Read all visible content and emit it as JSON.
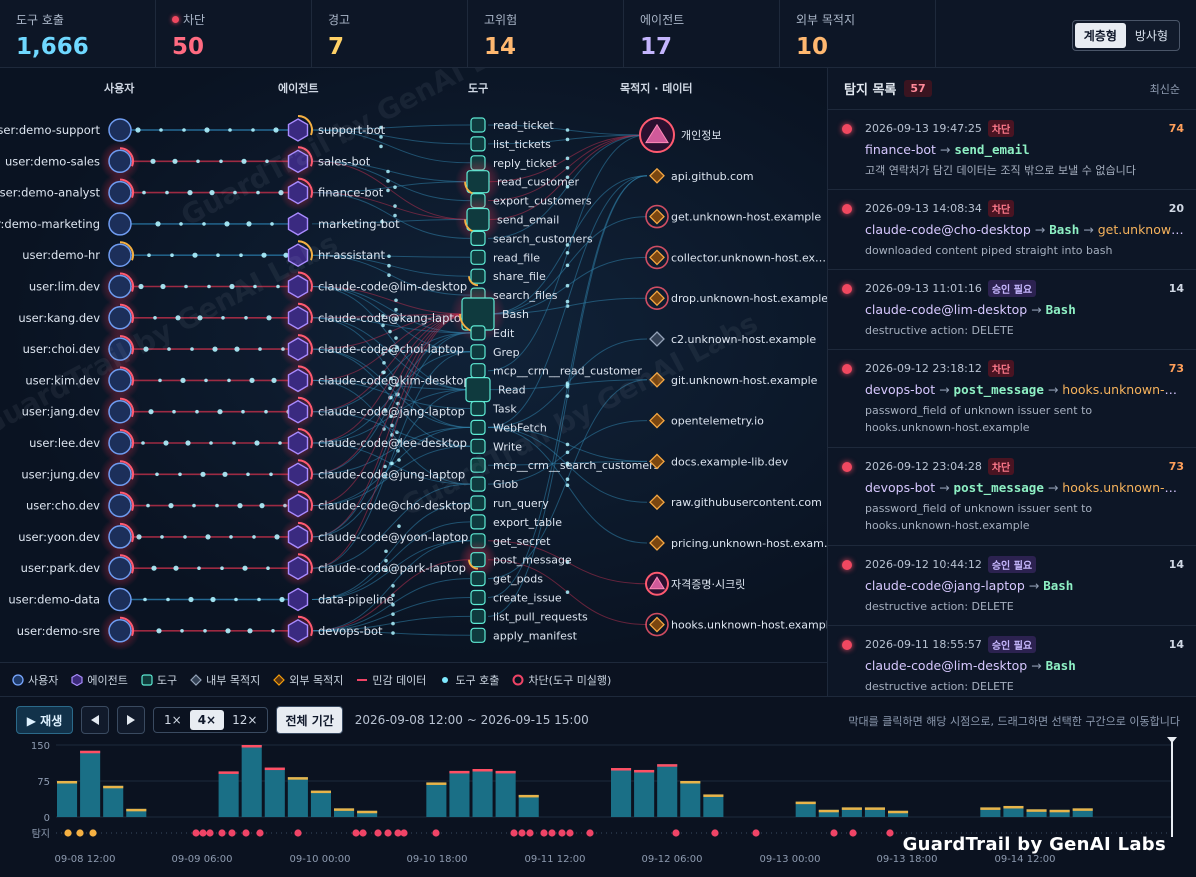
{
  "stats": [
    {
      "label": "도구 호출",
      "value": "1,666",
      "color": "#6fd8ff",
      "dot": false
    },
    {
      "label": "차단",
      "value": "50",
      "color": "#ff6b81",
      "dot": true
    },
    {
      "label": "경고",
      "value": "7",
      "color": "#ffd166",
      "dot": false
    },
    {
      "label": "고위험",
      "value": "14",
      "color": "#ffb870",
      "dot": false
    },
    {
      "label": "에이전트",
      "value": "17",
      "color": "#c4b5fd",
      "dot": false
    },
    {
      "label": "외부 목적지",
      "value": "10",
      "color": "#ffb870",
      "dot": false
    }
  ],
  "view_toggle": {
    "hier": "계층형",
    "radial": "방사형"
  },
  "graph": {
    "headers": {
      "users": "사용자",
      "agents": "에이전트",
      "tools": "도구",
      "dests": "목적지 · 데이터"
    },
    "users": [
      "user:demo-support",
      "user:demo-sales",
      "user:demo-analyst",
      "user:demo-marketing",
      "user:demo-hr",
      "user:lim.dev",
      "user:kang.dev",
      "user:choi.dev",
      "user:kim.dev",
      "user:jang.dev",
      "user:lee.dev",
      "user:jung.dev",
      "user:cho.dev",
      "user:yoon.dev",
      "user:park.dev",
      "user:demo-data",
      "user:demo-sre"
    ],
    "agents": [
      "support-bot",
      "sales-bot",
      "finance-bot",
      "marketing-bot",
      "hr-assistant",
      "claude-code@lim-desktop",
      "claude-code@kang-laptop",
      "claude-code@choi-laptop",
      "claude-code@kim-desktop",
      "claude-code@jang-laptop",
      "claude-code@lee-desktop",
      "claude-code@jung-laptop",
      "claude-code@cho-desktop",
      "claude-code@yoon-laptop",
      "claude-code@park-laptop",
      "data-pipeline",
      "devops-bot"
    ],
    "tools": [
      "read_ticket",
      "list_tickets",
      "reply_ticket",
      "read_customer",
      "export_customers",
      "send_email",
      "search_customers",
      "read_file",
      "share_file",
      "search_files",
      "Bash",
      "Edit",
      "Grep",
      "mcp__crm__read_customer",
      "Read",
      "Task",
      "WebFetch",
      "Write",
      "mcp__crm__search_customers",
      "Glob",
      "run_query",
      "export_table",
      "get_secret",
      "post_message",
      "get_pods",
      "create_issue",
      "list_pull_requests",
      "apply_manifest"
    ],
    "dests": [
      "개인정보",
      "api.github.com",
      "get.unknown-host.example",
      "collector.unknown-host.ex…",
      "drop.unknown-host.example",
      "c2.unknown-host.example",
      "git.unknown-host.example",
      "opentelemetry.io",
      "docs.example-lib.dev",
      "raw.githubusercontent.com",
      "pricing.unknown-host.exam…",
      "자격증명·시크릿",
      "hooks.unknown-host.example"
    ]
  },
  "legend": [
    "사용자",
    "에이전트",
    "도구",
    "내부 목적지",
    "외부 목적지",
    "민감 데이터",
    "도구 호출",
    "차단(도구 미실행)"
  ],
  "panel": {
    "title": "탐지 목록",
    "count": "57",
    "sort": "최신순",
    "items": [
      {
        "time": "2026-09-13 19:47:25",
        "badge": "차단",
        "type": "block",
        "score": "74",
        "score_color": "#ff9f5a",
        "agent": "finance-bot",
        "tool": "send_email",
        "dest": "",
        "desc": "고객 연락처가 담긴 데이터는 조직 밖으로 보낼 수 없습니다"
      },
      {
        "time": "2026-09-13 14:08:34",
        "badge": "차단",
        "type": "block",
        "score": "20",
        "score_color": "#d0d8e4",
        "agent": "claude-code@cho-desktop",
        "tool": "Bash",
        "dest": "get.unknown…",
        "desc": "downloaded content piped straight into bash"
      },
      {
        "time": "2026-09-13 11:01:16",
        "badge": "승인 필요",
        "type": "approve",
        "score": "14",
        "score_color": "#d0d8e4",
        "agent": "claude-code@lim-desktop",
        "tool": "Bash",
        "dest": "",
        "desc": "destructive action: DELETE"
      },
      {
        "time": "2026-09-12 23:18:12",
        "badge": "차단",
        "type": "block",
        "score": "73",
        "score_color": "#ff9f5a",
        "agent": "devops-bot",
        "tool": "post_message",
        "dest": "hooks.unknown-h…",
        "desc": "password_field of unknown issuer sent to hooks.unknown-host.example"
      },
      {
        "time": "2026-09-12 23:04:28",
        "badge": "차단",
        "type": "block",
        "score": "73",
        "score_color": "#ff9f5a",
        "agent": "devops-bot",
        "tool": "post_message",
        "dest": "hooks.unknown-h…",
        "desc": "password_field of unknown issuer sent to hooks.unknown-host.example"
      },
      {
        "time": "2026-09-12 10:44:12",
        "badge": "승인 필요",
        "type": "approve",
        "score": "14",
        "score_color": "#d0d8e4",
        "agent": "claude-code@jang-laptop",
        "tool": "Bash",
        "dest": "",
        "desc": "destructive action: DELETE"
      },
      {
        "time": "2026-09-11 18:55:57",
        "badge": "승인 필요",
        "type": "approve",
        "score": "14",
        "score_color": "#d0d8e4",
        "agent": "claude-code@lim-desktop",
        "tool": "Bash",
        "dest": "",
        "desc": "destructive action: DELETE"
      }
    ]
  },
  "timeline": {
    "play": "▶ 재생",
    "speeds": [
      "1×",
      "4×",
      "12×"
    ],
    "speed_selected": "4×",
    "full_range": "전체 기간",
    "range": "2026-09-08 12:00 ~ 2026-09-15 15:00",
    "hint": "막대를 클릭하면 해당 시점으로, 드래그하면 선택한 구간으로 이동합니다",
    "y_ticks": [
      "150",
      "75",
      "0"
    ],
    "detect_label": "탐지",
    "x_ticks": [
      "09-08 12:00",
      "09-09 06:00",
      "09-10 00:00",
      "09-10 18:00",
      "09-11 12:00",
      "09-12 06:00",
      "09-13 00:00",
      "09-13 18:00",
      "09-14 12:00"
    ],
    "bars": [
      75,
      138,
      65,
      17,
      0,
      0,
      0,
      95,
      150,
      103,
      83,
      55,
      18,
      13,
      0,
      0,
      72,
      96,
      100,
      96,
      46,
      0,
      0,
      0,
      102,
      98,
      110,
      75,
      47,
      0,
      0,
      0,
      32,
      15,
      20,
      20,
      13,
      0,
      0,
      0,
      20,
      23,
      16,
      15,
      18,
      0,
      0,
      0
    ]
  },
  "brand": "GuardTrail by GenAI Labs"
}
